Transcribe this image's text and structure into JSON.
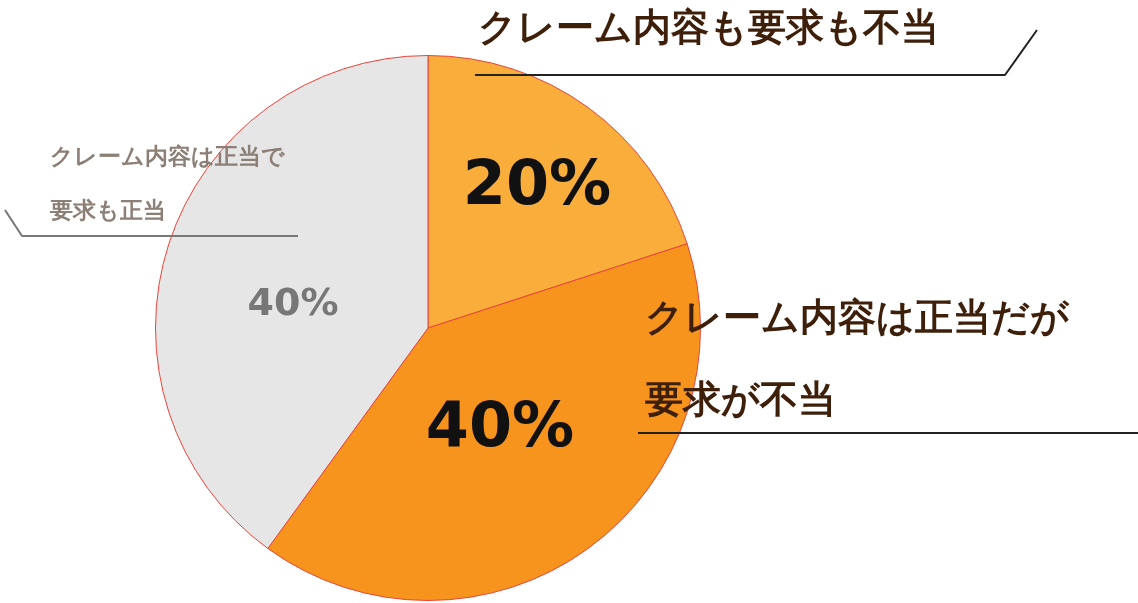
{
  "chart_data": {
    "type": "pie",
    "categories": [
      "クレーム内容も要求も不当",
      "クレーム内容は正当だが要求が不当",
      "クレーム内容は正当で要求も正当"
    ],
    "values": [
      20,
      40,
      40
    ],
    "colors": [
      "#f9ae3c",
      "#f7941d",
      "#e6e6e6"
    ],
    "value_labels": [
      "20%",
      "40%",
      "40%"
    ],
    "legend": false
  }
}
